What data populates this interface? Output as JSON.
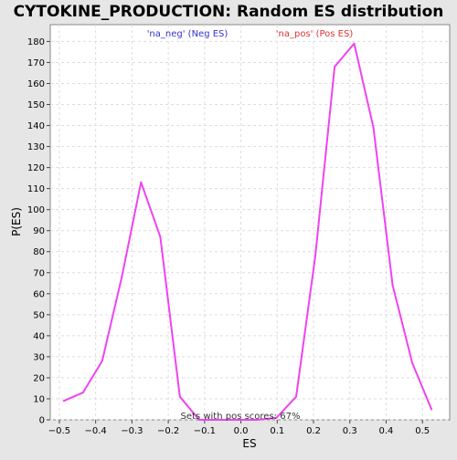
{
  "chart_data": {
    "type": "line",
    "title": "CYTOKINE_PRODUCTION: Random ES distribution",
    "xlabel": "ES",
    "ylabel": "P(ES)",
    "xlim": [
      -0.525,
      0.575
    ],
    "ylim": [
      0,
      188
    ],
    "xticks": [
      -0.5,
      -0.4,
      -0.3,
      -0.2,
      -0.1,
      0.0,
      0.1,
      0.2,
      0.3,
      0.4,
      0.5
    ],
    "xtick_labels": [
      "−0.5",
      "−0.4",
      "−0.3",
      "−0.2",
      "−0.1",
      "0.0",
      "0.1",
      "0.2",
      "0.3",
      "0.4",
      "0.5"
    ],
    "yticks": [
      0,
      10,
      20,
      30,
      40,
      50,
      60,
      70,
      80,
      90,
      100,
      110,
      120,
      130,
      140,
      150,
      160,
      170,
      180
    ],
    "grid": true,
    "legend": [
      "'na_neg' (Neg ES)",
      "'na_pos' (Pos ES)"
    ],
    "legend_colors": [
      "#3333cc",
      "#dd3333"
    ],
    "annotation": "Sets with pos scores: 67%",
    "line_color": "#ee44ee",
    "series": [
      {
        "x": [
          -0.488,
          -0.435,
          -0.382,
          -0.328,
          -0.275,
          -0.222,
          -0.168,
          -0.115,
          -0.062,
          -0.008,
          0.045,
          0.098,
          0.152,
          0.205,
          0.258,
          0.312,
          0.365,
          0.418,
          0.472,
          0.525
        ],
        "y": [
          9,
          13,
          28,
          68,
          113,
          87,
          11,
          0,
          0,
          0,
          0,
          1,
          11,
          78,
          168,
          179,
          139,
          64,
          27,
          5
        ]
      }
    ]
  }
}
